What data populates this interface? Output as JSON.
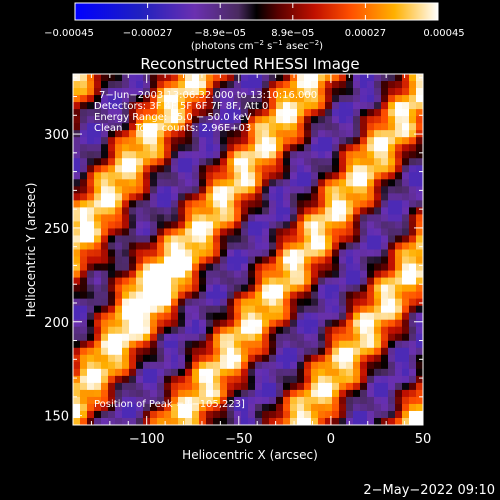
{
  "chart_data": {
    "type": "heatmap",
    "title": "Reconstructed RHESSI Image",
    "xlabel": "Heliocentric X (arcsec)",
    "ylabel": "Heliocentric Y (arcsec)",
    "xlim": [
      -140,
      50
    ],
    "ylim": [
      145,
      332
    ],
    "x_ticks": [
      -100,
      -50,
      0,
      50
    ],
    "x_tick_labels": [
      "−100",
      "−50",
      "0",
      "50"
    ],
    "y_ticks": [
      150,
      200,
      250,
      300
    ],
    "y_tick_labels": [
      "150",
      "200",
      "250",
      "300"
    ],
    "colorbar": {
      "range": [
        -0.00045,
        0.00045
      ],
      "tick_labels": [
        "−0.00045",
        "−0.00027",
        "−8.9e−05",
        "8.9e−05",
        "0.00027",
        "0.00045"
      ],
      "unit_prefix": "(photons cm",
      "unit_exp1": "−2",
      "unit_mid": " s",
      "unit_exp2": "−1",
      "unit_mid2": " asec",
      "unit_exp3": "−2",
      "unit_suffix": ")"
    },
    "annotations": {
      "line1": "7−Jun−2003 13:06:32.000 to 13:10:16.000",
      "line2": "Detectors: 3F 4F 5F 6F 7F 8F, Att 0",
      "line3": "Energy Range: 25.0 − 50.0 keV",
      "line4": "Clean    Total counts: 2.96E+03",
      "peak": "Position of Peak = [−105,223]"
    },
    "peak": {
      "x": -105,
      "y": 223
    },
    "grid": false
  },
  "footer": {
    "timestamp": "2−May−2022 09:10"
  }
}
